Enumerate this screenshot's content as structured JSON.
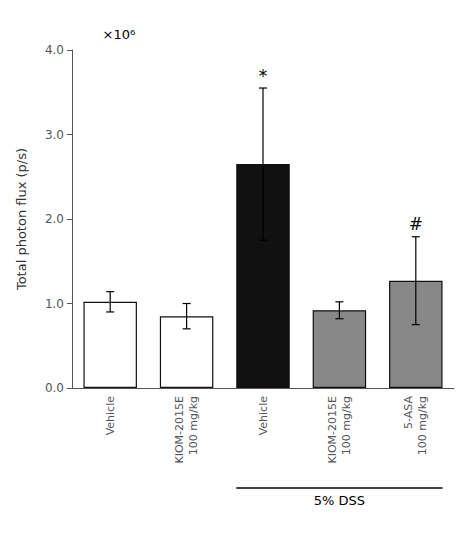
{
  "chart_data": {
    "type": "bar",
    "categories": [
      "Vehicle",
      "KIOM-2015E\n100 mg/kg",
      "Vehicle",
      "KIOM-2015E\n100 mg/kg",
      "5-ASA\n100 mg/kg"
    ],
    "values": [
      1.02,
      0.85,
      2.65,
      0.92,
      1.27
    ],
    "errors": [
      0.12,
      0.15,
      0.9,
      0.1,
      0.52
    ],
    "colors": [
      "#ffffff",
      "#ffffff",
      "#111111",
      "#888888",
      "#888888"
    ],
    "ylabel": "Total photon flux (p/s)",
    "ylim": [
      0,
      4.0
    ],
    "yticks": [
      {
        "value": 0,
        "label": "0.0"
      },
      {
        "value": 1.0,
        "label": "1.0"
      },
      {
        "value": 2.0,
        "label": "2.0"
      },
      {
        "value": 3.0,
        "label": "3.0"
      },
      {
        "value": 4.0,
        "label": "4.0"
      }
    ],
    "grid": false,
    "annotations": [
      {
        "text": "×10⁶"
      },
      {
        "text": "*",
        "bar": 2
      },
      {
        "text": "#",
        "bar": 4
      },
      {
        "text": "5% DSS",
        "bars": [
          2,
          3,
          4
        ]
      }
    ]
  }
}
